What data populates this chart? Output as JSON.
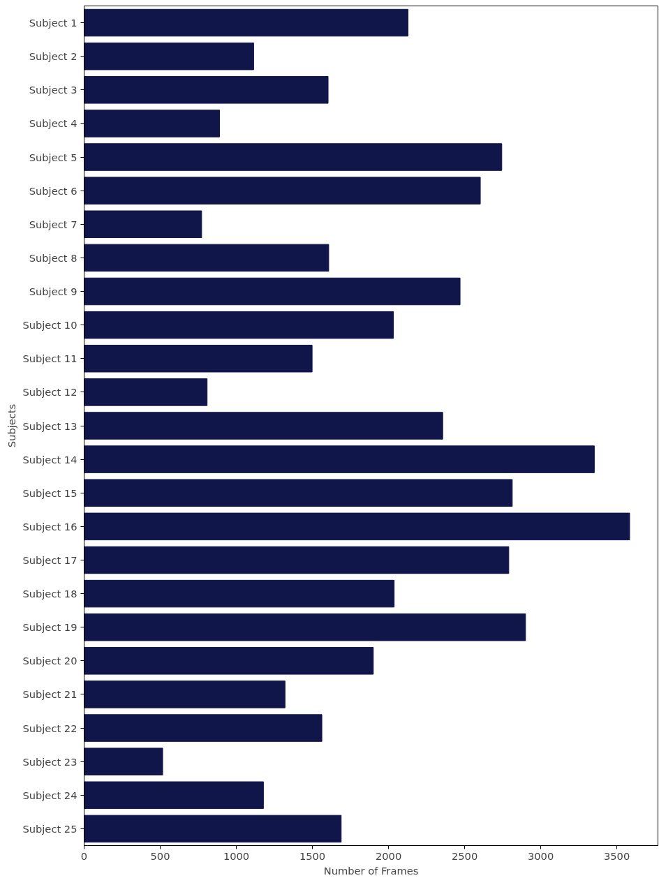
{
  "chart_data": {
    "type": "bar",
    "orientation": "horizontal",
    "xlabel": "Number of Frames",
    "ylabel": "Subjects",
    "categories": [
      "Subject 1",
      "Subject 2",
      "Subject 3",
      "Subject 4",
      "Subject 5",
      "Subject 6",
      "Subject 7",
      "Subject 8",
      "Subject 9",
      "Subject 10",
      "Subject 11",
      "Subject 12",
      "Subject 13",
      "Subject 14",
      "Subject 15",
      "Subject 16",
      "Subject 17",
      "Subject 18",
      "Subject 19",
      "Subject 20",
      "Subject 21",
      "Subject 22",
      "Subject 23",
      "Subject 24",
      "Subject 25"
    ],
    "values": [
      2128,
      1114,
      1603,
      890,
      2744,
      2603,
      772,
      1607,
      2470,
      2032,
      1498,
      808,
      2356,
      3352,
      2813,
      3584,
      2790,
      2037,
      2900,
      1900,
      1320,
      1562,
      516,
      1178,
      1689
    ],
    "color": "#10154a",
    "xlim": [
      0,
      3770
    ],
    "xticks": [
      0,
      500,
      1000,
      1500,
      2000,
      2500,
      3000,
      3500
    ],
    "grid": false
  }
}
